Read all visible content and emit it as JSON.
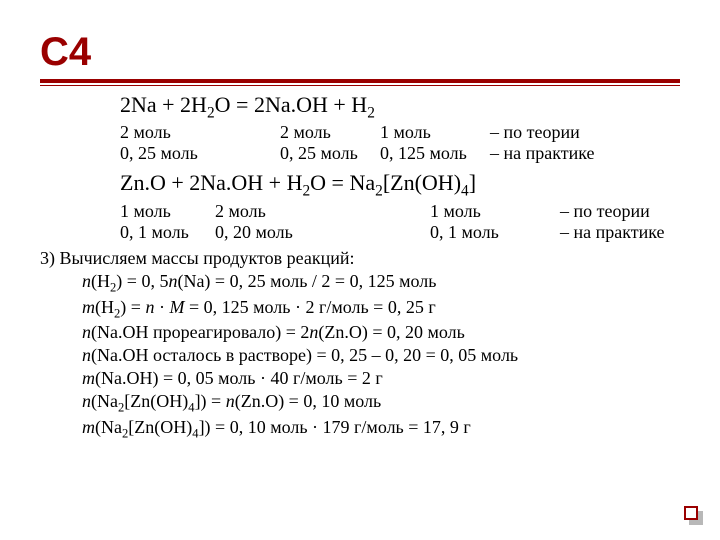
{
  "title": "С4",
  "eq1_html": "2Na + 2H<sub>2</sub>O = 2Na.OH + H<sub>2</sub>",
  "r1": {
    "a": "2 моль",
    "b": "2 моль",
    "c": "1 моль",
    "note": "– по теории"
  },
  "r2": {
    "a": "0, 25 моль",
    "b": "0, 25 моль",
    "c": "0, 125 моль",
    "note": "– на практике"
  },
  "eq2_html": "Zn.O + 2Na.OH + H<sub>2</sub>O = Na<sub>2</sub>[Zn(OH)<sub>4</sub>]",
  "r3": {
    "a": "1 моль",
    "b": "2 моль",
    "c": "1 моль",
    "note": "– по теории"
  },
  "r4": {
    "a": "0, 1 моль",
    "b": "0, 20 моль",
    "c": "0, 1 моль",
    "note": "– на практике"
  },
  "calc": {
    "l0": "3) Вычисляем массы продуктов реакций:",
    "l1_html": "<i>n</i>(H<sub>2</sub>) = 0, 5<i>n</i>(Na) = 0, 25 моль / 2 = 0, 125 моль",
    "l2_html": "<i>m</i>(H<sub>2</sub>) = <i>n</i> · <i>M</i> = 0, 125 моль · 2 г/моль = 0, 25 г",
    "l3_html": "<i>n</i>(Na.OH прореагировало) = 2<i>n</i>(Zn.O) = 0, 20 моль",
    "l4_html": "<i>n</i>(Na.OH осталось в растворе) = 0, 25 – 0, 20 = 0, 05 моль",
    "l5_html": "<i>m</i>(Na.OH) = 0, 05 моль · 40 г/моль = 2 г",
    "l6_html": "<i>n</i>(Na<sub>2</sub>[Zn(OH)<sub>4</sub>]) = <i>n</i>(Zn.O) = 0, 10 моль",
    "l7_html": "<i>m</i>(Na<sub>2</sub>[Zn(OH)<sub>4</sub>]) = 0, 10 моль · 179 г/моль = 17, 9 г"
  }
}
